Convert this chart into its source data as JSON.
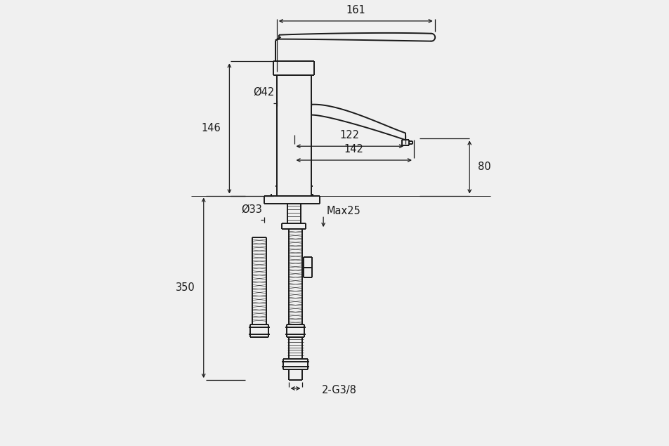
{
  "bg_color": "#f0f0f0",
  "line_color": "#1a1a1a",
  "dim_color": "#1a1a1a",
  "lw_main": 1.4,
  "lw_thin": 0.7,
  "lw_dim": 0.9,
  "fs_dim": 10.5,
  "dims": {
    "d161": "161",
    "d146": "146",
    "d42": "Ø42",
    "d122": "122",
    "d142": "142",
    "d80": "80",
    "d33": "Ø33",
    "dmax25": "Max25",
    "d350": "350",
    "dg38": "2-G3/8"
  }
}
